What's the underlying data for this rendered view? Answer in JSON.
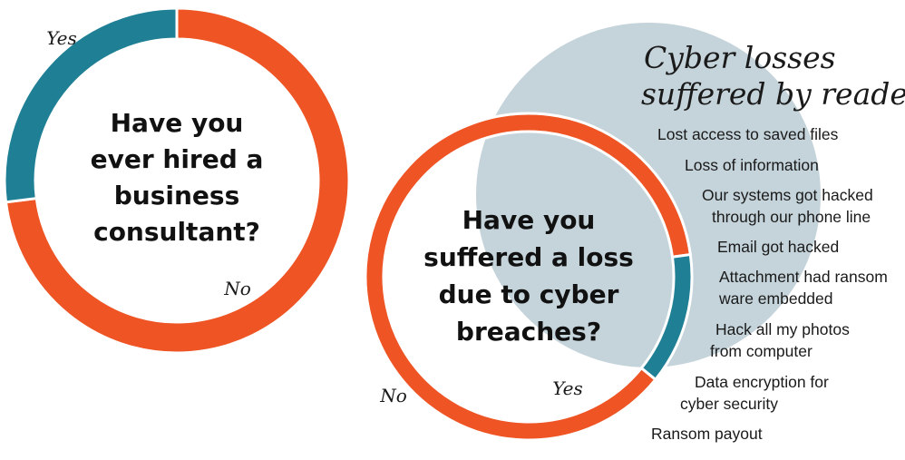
{
  "colors": {
    "orange": "#ee5424",
    "teal": "#1e7f95",
    "bubble": "#c5d4db"
  },
  "chart_data": [
    {
      "type": "pie",
      "title_lines": [
        "Have you",
        "ever hired a",
        "business",
        "consultant?"
      ],
      "slices": [
        {
          "label": "No",
          "value": 73
        },
        {
          "label": "Yes",
          "value": 27
        }
      ]
    },
    {
      "type": "pie",
      "title_lines": [
        "Have you",
        "suffered a loss",
        "due to cyber",
        "breaches?"
      ],
      "slices": [
        {
          "label": "No",
          "value": 87
        },
        {
          "label": "Yes",
          "value": 13
        }
      ]
    }
  ],
  "side_panel": {
    "title_lines": [
      "Cyber losses",
      "suffered by readers"
    ],
    "items": [
      [
        "Lost access to saved files"
      ],
      [
        "Loss of information"
      ],
      [
        "Our systems got hacked",
        "through our phone line"
      ],
      [
        "Email got hacked"
      ],
      [
        "Attachment had ransom",
        "ware embedded"
      ],
      [
        "Hack all my photos",
        "from computer"
      ],
      [
        "Data encryption for",
        "cyber security"
      ],
      [
        "Ransom payout"
      ]
    ]
  }
}
